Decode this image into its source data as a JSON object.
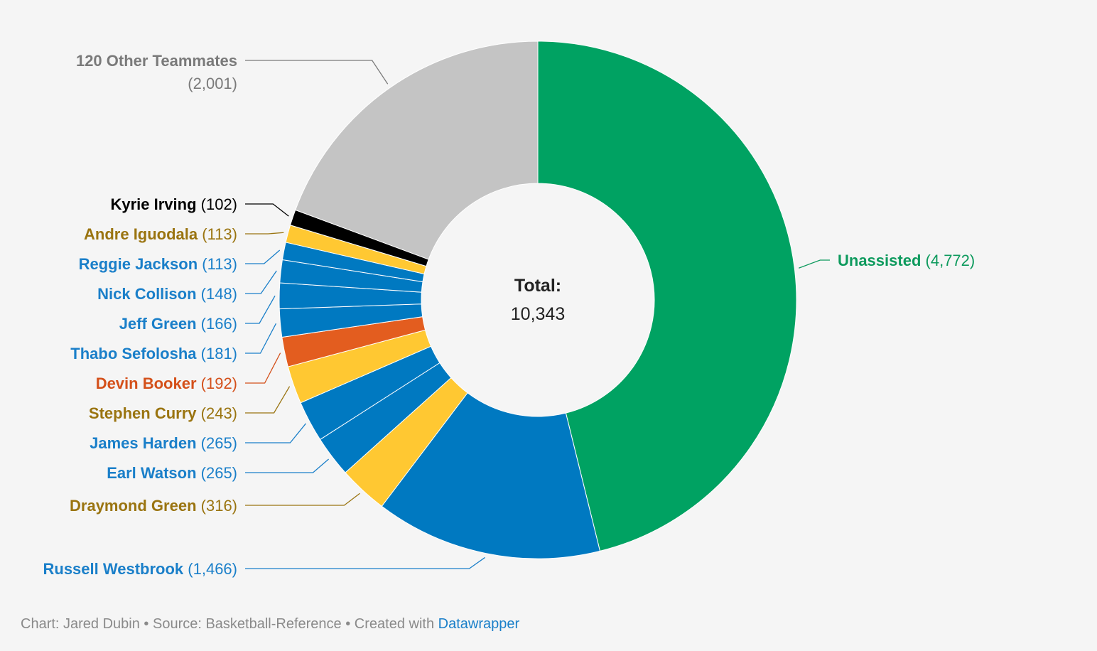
{
  "chart_data": {
    "type": "pie",
    "subtype": "donut",
    "center_label": {
      "title": "Total:",
      "value": "10,343"
    },
    "slices": [
      {
        "name": "Unassisted",
        "value": 4772,
        "display": "4,772",
        "color": "#00a262",
        "text_color": "#0d9a5d"
      },
      {
        "name": "Russell Westbrook",
        "value": 1466,
        "display": "1,466",
        "color": "#0079c1",
        "text_color": "#1a7fc9"
      },
      {
        "name": "Draymond Green",
        "value": 316,
        "display": "316",
        "color": "#ffc832",
        "text_color": "#9a7410"
      },
      {
        "name": "Earl Watson",
        "value": 265,
        "display": "265",
        "color": "#0079c1",
        "text_color": "#1a7fc9"
      },
      {
        "name": "James Harden",
        "value": 265,
        "display": "265",
        "color": "#0079c1",
        "text_color": "#1a7fc9"
      },
      {
        "name": "Stephen Curry",
        "value": 243,
        "display": "243",
        "color": "#ffc832",
        "text_color": "#9a7410"
      },
      {
        "name": "Devin Booker",
        "value": 192,
        "display": "192",
        "color": "#e35d1f",
        "text_color": "#d4501a"
      },
      {
        "name": "Thabo Sefolosha",
        "value": 181,
        "display": "181",
        "color": "#0079c1",
        "text_color": "#1a7fc9"
      },
      {
        "name": "Jeff Green",
        "value": 166,
        "display": "166",
        "color": "#0079c1",
        "text_color": "#1a7fc9"
      },
      {
        "name": "Nick Collison",
        "value": 148,
        "display": "148",
        "color": "#0079c1",
        "text_color": "#1a7fc9"
      },
      {
        "name": "Reggie Jackson",
        "value": 113,
        "display": "113",
        "color": "#0079c1",
        "text_color": "#1a7fc9"
      },
      {
        "name": "Andre Iguodala",
        "value": 113,
        "display": "113",
        "color": "#ffc832",
        "text_color": "#9a7410"
      },
      {
        "name": "Kyrie Irving",
        "value": 102,
        "display": "102",
        "color": "#000000",
        "text_color": "#000000"
      },
      {
        "name": "120 Other Teammates",
        "value": 2001,
        "display": "2,001",
        "color": "#c4c4c4",
        "text_color": "#7a7a7a"
      }
    ]
  },
  "footer": {
    "text": "Chart: Jared Dubin • Source: Basketball-Reference • Created with ",
    "link": "Datawrapper"
  }
}
